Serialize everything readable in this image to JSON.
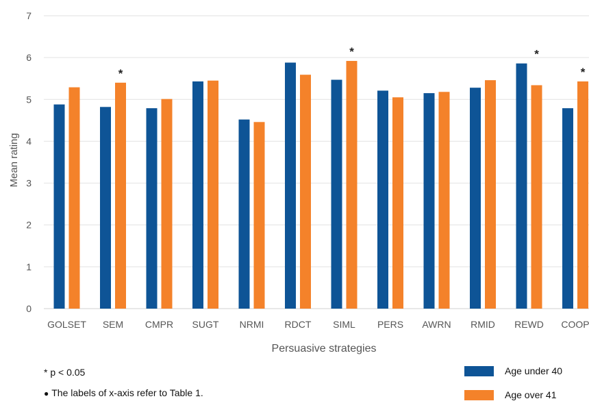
{
  "chart_data": {
    "type": "bar",
    "ylabel": "Mean rating",
    "xlabel": "Persuasive strategies",
    "ylim": [
      0,
      7
    ],
    "yticks": [
      0,
      1,
      2,
      3,
      4,
      5,
      6,
      7
    ],
    "grid": true,
    "categories": [
      "GOLSET",
      "SEM",
      "CMPR",
      "SUGT",
      "NRMI",
      "RDCT",
      "SIML",
      "PERS",
      "AWRN",
      "RMID",
      "REWD",
      "COOP"
    ],
    "series": [
      {
        "name": "Age under 40",
        "color": "#0e5496",
        "values": [
          4.88,
          4.82,
          4.79,
          5.43,
          4.52,
          5.88,
          5.47,
          5.21,
          5.15,
          5.28,
          5.86,
          4.79
        ]
      },
      {
        "name": "Age over 41",
        "color": "#f4822a",
        "values": [
          5.29,
          5.4,
          5.01,
          5.45,
          4.46,
          5.59,
          5.92,
          5.05,
          5.18,
          5.46,
          5.34,
          5.43
        ]
      }
    ],
    "significance_marker": "*",
    "significant_categories": [
      "SEM",
      "SIML",
      "REWD",
      "COOP"
    ]
  },
  "notes": {
    "significance": "* p < 0.05",
    "bullet": "●",
    "table_ref": "The labels of x-axis refer to Table 1."
  }
}
